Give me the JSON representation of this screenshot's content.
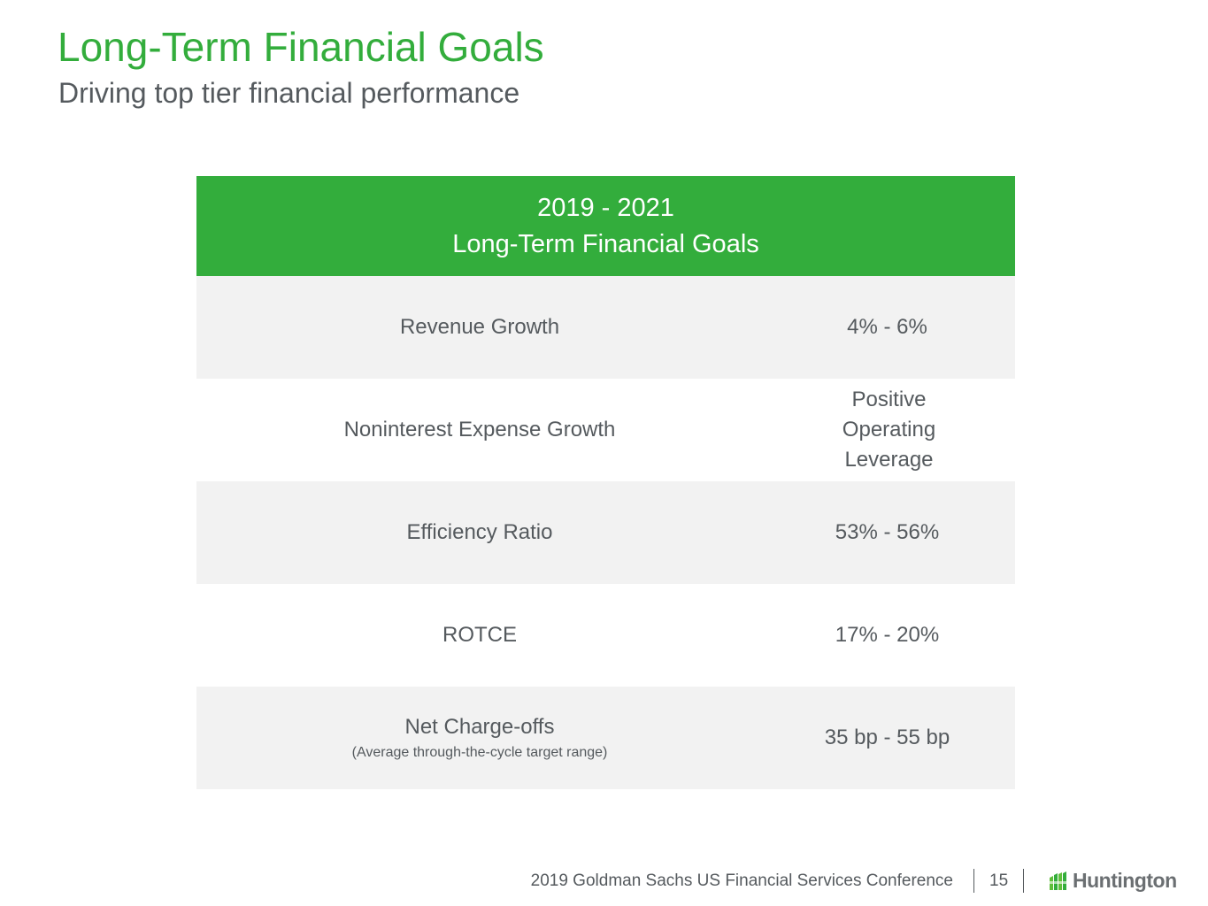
{
  "slide": {
    "title": "Long-Term Financial Goals",
    "subtitle": "Driving top tier financial performance"
  },
  "table": {
    "header_line1": "2019 - 2021",
    "header_line2": "Long-Term Financial Goals",
    "rows": [
      {
        "metric": "Revenue Growth",
        "target": "4% - 6%"
      },
      {
        "metric": "Noninterest Expense Growth",
        "target": "Positive Operating Leverage"
      },
      {
        "metric": "Efficiency Ratio",
        "target": "53% - 56%"
      },
      {
        "metric": "ROTCE",
        "target": "17% - 20%"
      },
      {
        "metric": "Net Charge-offs",
        "note": "(Average through-the-cycle target range)",
        "target": "35 bp - 55 bp"
      }
    ]
  },
  "footer": {
    "conference": "2019 Goldman Sachs US Financial Services Conference",
    "page_number": "15",
    "logo_text": "Huntington"
  },
  "colors": {
    "brand_green": "#33ad3c",
    "text_gray": "#555a5e",
    "row_shade": "#f2f2f2"
  }
}
